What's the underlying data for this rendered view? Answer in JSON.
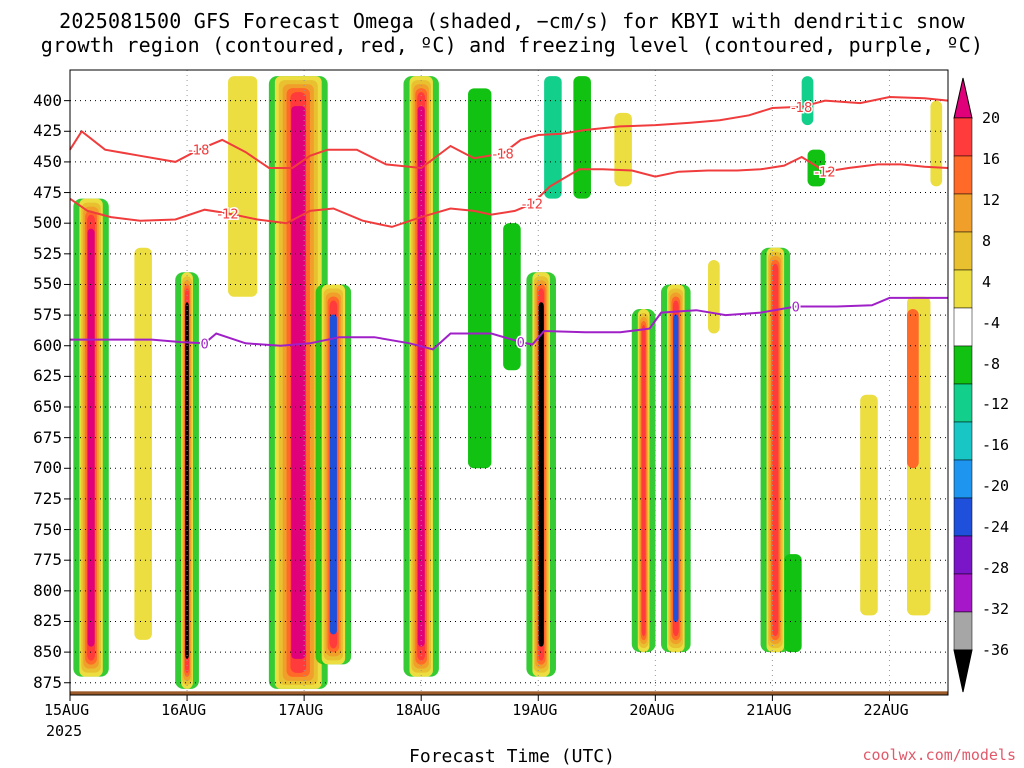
{
  "chart_data": {
    "type": "heatmap",
    "title": "2025081500 GFS Forecast Omega (shaded, −cm/s) for KBYI with dendritic snow",
    "subtitle": "growth region (contoured, red, ºC) and freezing level (contoured, purple, ºC)",
    "xlabel": "Forecast Time (UTC)",
    "ylabel": "",
    "x_ticks": [
      "15AUG",
      "16AUG",
      "17AUG",
      "18AUG",
      "19AUG",
      "20AUG",
      "21AUG",
      "22AUG"
    ],
    "x_year": "2025",
    "x_range_days": [
      0,
      7.5
    ],
    "y_ticks": [
      "400",
      "425",
      "450",
      "475",
      "500",
      "525",
      "550",
      "575",
      "600",
      "625",
      "650",
      "675",
      "700",
      "725",
      "750",
      "775",
      "800",
      "825",
      "850",
      "875"
    ],
    "y_range_hpa": [
      375,
      885
    ],
    "grid": true,
    "colorbar": {
      "labels": [
        "20",
        "16",
        "12",
        "8",
        "4",
        "-4",
        "-8",
        "-12",
        "-16",
        "-20",
        "-24",
        "-28",
        "-32",
        "-36"
      ],
      "colors": [
        "#e0007a",
        "#ff3b3b",
        "#ff6a28",
        "#f0a02a",
        "#e8c030",
        "#ecde40",
        "#ffffff",
        "#12c212",
        "#13cf8c",
        "#19c6c6",
        "#1e96f0",
        "#1e50dc",
        "#7a16c8",
        "#a517c8",
        "#a6a6a6",
        "#000000"
      ]
    },
    "contours": [
      {
        "name": "-18",
        "color": "#f03c3c",
        "points": [
          [
            0,
            440
          ],
          [
            0.1,
            425
          ],
          [
            0.3,
            440
          ],
          [
            0.6,
            445
          ],
          [
            0.9,
            450
          ],
          [
            1.1,
            440
          ],
          [
            1.3,
            432
          ],
          [
            1.5,
            442
          ],
          [
            1.7,
            455
          ],
          [
            1.9,
            455
          ],
          [
            2.05,
            445
          ],
          [
            2.2,
            440
          ],
          [
            2.45,
            440
          ],
          [
            2.7,
            452
          ],
          [
            3.0,
            455
          ],
          [
            3.25,
            437
          ],
          [
            3.45,
            447
          ],
          [
            3.7,
            443
          ],
          [
            3.85,
            432
          ],
          [
            4.0,
            428
          ],
          [
            4.2,
            427
          ],
          [
            4.4,
            424
          ],
          [
            4.7,
            421
          ],
          [
            5.0,
            420
          ],
          [
            5.3,
            418
          ],
          [
            5.55,
            416
          ],
          [
            5.8,
            412
          ],
          [
            6.0,
            406
          ],
          [
            6.25,
            405
          ],
          [
            6.45,
            400
          ],
          [
            6.75,
            402
          ],
          [
            7.0,
            397
          ],
          [
            7.3,
            398
          ],
          [
            7.5,
            400
          ]
        ]
      },
      {
        "name": "-12",
        "color": "#f03c3c",
        "points": [
          [
            0,
            480
          ],
          [
            0.15,
            490
          ],
          [
            0.35,
            495
          ],
          [
            0.6,
            498
          ],
          [
            0.9,
            497
          ],
          [
            1.15,
            489
          ],
          [
            1.35,
            492
          ],
          [
            1.6,
            497
          ],
          [
            1.85,
            500
          ],
          [
            2.05,
            490
          ],
          [
            2.25,
            488
          ],
          [
            2.5,
            498
          ],
          [
            2.75,
            503
          ],
          [
            3.0,
            495
          ],
          [
            3.25,
            488
          ],
          [
            3.45,
            490
          ],
          [
            3.6,
            493
          ],
          [
            3.8,
            490
          ],
          [
            3.95,
            484
          ],
          [
            4.1,
            470
          ],
          [
            4.35,
            456
          ],
          [
            4.55,
            456
          ],
          [
            4.8,
            457
          ],
          [
            5.0,
            462
          ],
          [
            5.2,
            458
          ],
          [
            5.45,
            457
          ],
          [
            5.7,
            457
          ],
          [
            5.9,
            456
          ],
          [
            6.1,
            453
          ],
          [
            6.25,
            446
          ],
          [
            6.45,
            458
          ],
          [
            6.65,
            455
          ],
          [
            6.9,
            452
          ],
          [
            7.1,
            452
          ],
          [
            7.3,
            454
          ],
          [
            7.5,
            455
          ]
        ]
      },
      {
        "name": "0",
        "color": "#a020c8",
        "points": [
          [
            0,
            595
          ],
          [
            0.2,
            595
          ],
          [
            0.4,
            595
          ],
          [
            0.7,
            595
          ],
          [
            0.95,
            597
          ],
          [
            1.15,
            598
          ],
          [
            1.25,
            590
          ],
          [
            1.5,
            598
          ],
          [
            1.8,
            600
          ],
          [
            2.05,
            598
          ],
          [
            2.3,
            593
          ],
          [
            2.6,
            593
          ],
          [
            2.9,
            598
          ],
          [
            3.1,
            603
          ],
          [
            3.25,
            590
          ],
          [
            3.6,
            590
          ],
          [
            3.85,
            597
          ],
          [
            3.95,
            599
          ],
          [
            4.05,
            588
          ],
          [
            4.4,
            589
          ],
          [
            4.7,
            589
          ],
          [
            4.95,
            586
          ],
          [
            5.05,
            573
          ],
          [
            5.35,
            571
          ],
          [
            5.6,
            575
          ],
          [
            5.9,
            573
          ],
          [
            6.2,
            568
          ],
          [
            6.55,
            568
          ],
          [
            6.85,
            567
          ],
          [
            7.0,
            561
          ],
          [
            7.3,
            561
          ],
          [
            7.5,
            561
          ]
        ]
      }
    ],
    "omega_bands": [
      {
        "x": [
          0.08,
          0.28
        ],
        "p": [
          480,
          870
        ],
        "core": "#e0007a"
      },
      {
        "x": [
          0.95,
          1.05
        ],
        "p": [
          540,
          880
        ],
        "core": "#000000"
      },
      {
        "x": [
          1.75,
          2.15
        ],
        "p": [
          380,
          880
        ],
        "core": "#e0007a"
      },
      {
        "x": [
          2.15,
          2.35
        ],
        "p": [
          550,
          860
        ],
        "core": "#1e50dc"
      },
      {
        "x": [
          2.9,
          3.1
        ],
        "p": [
          380,
          870
        ],
        "core": "#e0007a"
      },
      {
        "x": [
          3.95,
          4.1
        ],
        "p": [
          540,
          870
        ],
        "core": "#000000"
      },
      {
        "x": [
          4.85,
          4.95
        ],
        "p": [
          570,
          850
        ],
        "core": "#ff3b3b"
      },
      {
        "x": [
          5.1,
          5.25
        ],
        "p": [
          550,
          850
        ],
        "core": "#1e50dc"
      },
      {
        "x": [
          5.95,
          6.1
        ],
        "p": [
          520,
          850
        ],
        "core": "#ff3b3b"
      }
    ],
    "minor_bands": [
      {
        "x": [
          0.55,
          0.7
        ],
        "p": [
          520,
          840
        ],
        "color": "#ecde40"
      },
      {
        "x": [
          1.35,
          1.6
        ],
        "p": [
          380,
          560
        ],
        "color": "#ecde40"
      },
      {
        "x": [
          3.4,
          3.6
        ],
        "p": [
          390,
          700
        ],
        "color": "#12c212"
      },
      {
        "x": [
          3.7,
          3.85
        ],
        "p": [
          500,
          620
        ],
        "color": "#12c212"
      },
      {
        "x": [
          4.3,
          4.45
        ],
        "p": [
          380,
          480
        ],
        "color": "#12c212"
      },
      {
        "x": [
          4.05,
          4.2
        ],
        "p": [
          380,
          480
        ],
        "color": "#13cf8c"
      },
      {
        "x": [
          4.65,
          4.8
        ],
        "p": [
          410,
          470
        ],
        "color": "#ecde40"
      },
      {
        "x": [
          5.45,
          5.55
        ],
        "p": [
          530,
          590
        ],
        "color": "#ecde40"
      },
      {
        "x": [
          6.25,
          6.35
        ],
        "p": [
          380,
          420
        ],
        "color": "#13cf8c"
      },
      {
        "x": [
          6.3,
          6.45
        ],
        "p": [
          440,
          470
        ],
        "color": "#12c212"
      },
      {
        "x": [
          6.1,
          6.25
        ],
        "p": [
          770,
          850
        ],
        "color": "#12c212"
      },
      {
        "x": [
          6.75,
          6.9
        ],
        "p": [
          640,
          820
        ],
        "color": "#ecde40"
      },
      {
        "x": [
          7.15,
          7.35
        ],
        "p": [
          560,
          820
        ],
        "color": "#ecde40"
      },
      {
        "x": [
          7.15,
          7.25
        ],
        "p": [
          570,
          700
        ],
        "color": "#ff6a28"
      },
      {
        "x": [
          7.35,
          7.45
        ],
        "p": [
          400,
          470
        ],
        "color": "#ecde40"
      }
    ]
  },
  "credit": "coolwx.com/models"
}
